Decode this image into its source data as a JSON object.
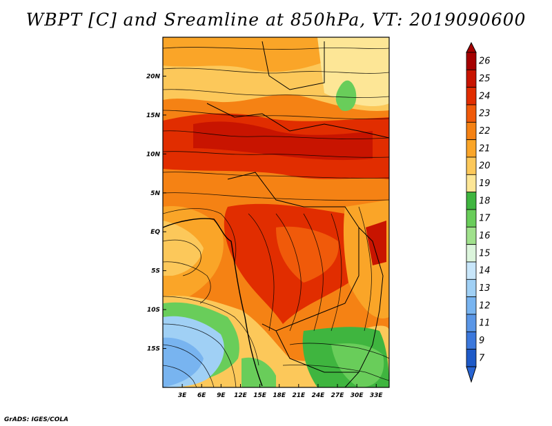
{
  "title": "WBPT [C] and Sreamline at 850hPa, VT: 2019090600",
  "credit": "GrADS: IGES/COLA",
  "colors": {
    "frame": "#000000",
    "streamline": "#000000",
    "coast": "#000000"
  },
  "map": {
    "lon_range": [
      0,
      35
    ],
    "lat_range": [
      -20,
      25
    ],
    "x_ticks": [
      {
        "lon": 3,
        "label": "3E"
      },
      {
        "lon": 6,
        "label": "6E"
      },
      {
        "lon": 9,
        "label": "9E"
      },
      {
        "lon": 12,
        "label": "12E"
      },
      {
        "lon": 15,
        "label": "15E"
      },
      {
        "lon": 18,
        "label": "18E"
      },
      {
        "lon": 21,
        "label": "21E"
      },
      {
        "lon": 24,
        "label": "24E"
      },
      {
        "lon": 27,
        "label": "27E"
      },
      {
        "lon": 30,
        "label": "30E"
      },
      {
        "lon": 33,
        "label": "33E"
      }
    ],
    "y_ticks": [
      {
        "lat": 20,
        "label": "20N"
      },
      {
        "lat": 15,
        "label": "15N"
      },
      {
        "lat": 10,
        "label": "10N"
      },
      {
        "lat": 5,
        "label": "5N"
      },
      {
        "lat": 0,
        "label": "EQ"
      },
      {
        "lat": -5,
        "label": "5S"
      },
      {
        "lat": -10,
        "label": "10S"
      },
      {
        "lat": -15,
        "label": "15S"
      }
    ]
  },
  "colorbar": {
    "levels": [
      {
        "label": "26",
        "color": "#a50000"
      },
      {
        "label": "25",
        "color": "#c81400"
      },
      {
        "label": "24",
        "color": "#e12d00"
      },
      {
        "label": "23",
        "color": "#f05a0a"
      },
      {
        "label": "22",
        "color": "#f58214"
      },
      {
        "label": "21",
        "color": "#faa528"
      },
      {
        "label": "20",
        "color": "#fcc85a"
      },
      {
        "label": "19",
        "color": "#fde696"
      },
      {
        "label": "18",
        "color": "#3fb53f"
      },
      {
        "label": "17",
        "color": "#69cd5a"
      },
      {
        "label": "16",
        "color": "#a0e18c"
      },
      {
        "label": "15",
        "color": "#dcf5dc"
      },
      {
        "label": "14",
        "color": "#c8e6fa"
      },
      {
        "label": "13",
        "color": "#a0d0f5"
      },
      {
        "label": "12",
        "color": "#78b4f0"
      },
      {
        "label": "11",
        "color": "#5a96e6"
      },
      {
        "label": "9",
        "color": "#3c78dc"
      },
      {
        "label": "7",
        "color": "#1e5ac8"
      }
    ],
    "top_color": "#a50000",
    "bottom_color": "#2864d2"
  }
}
